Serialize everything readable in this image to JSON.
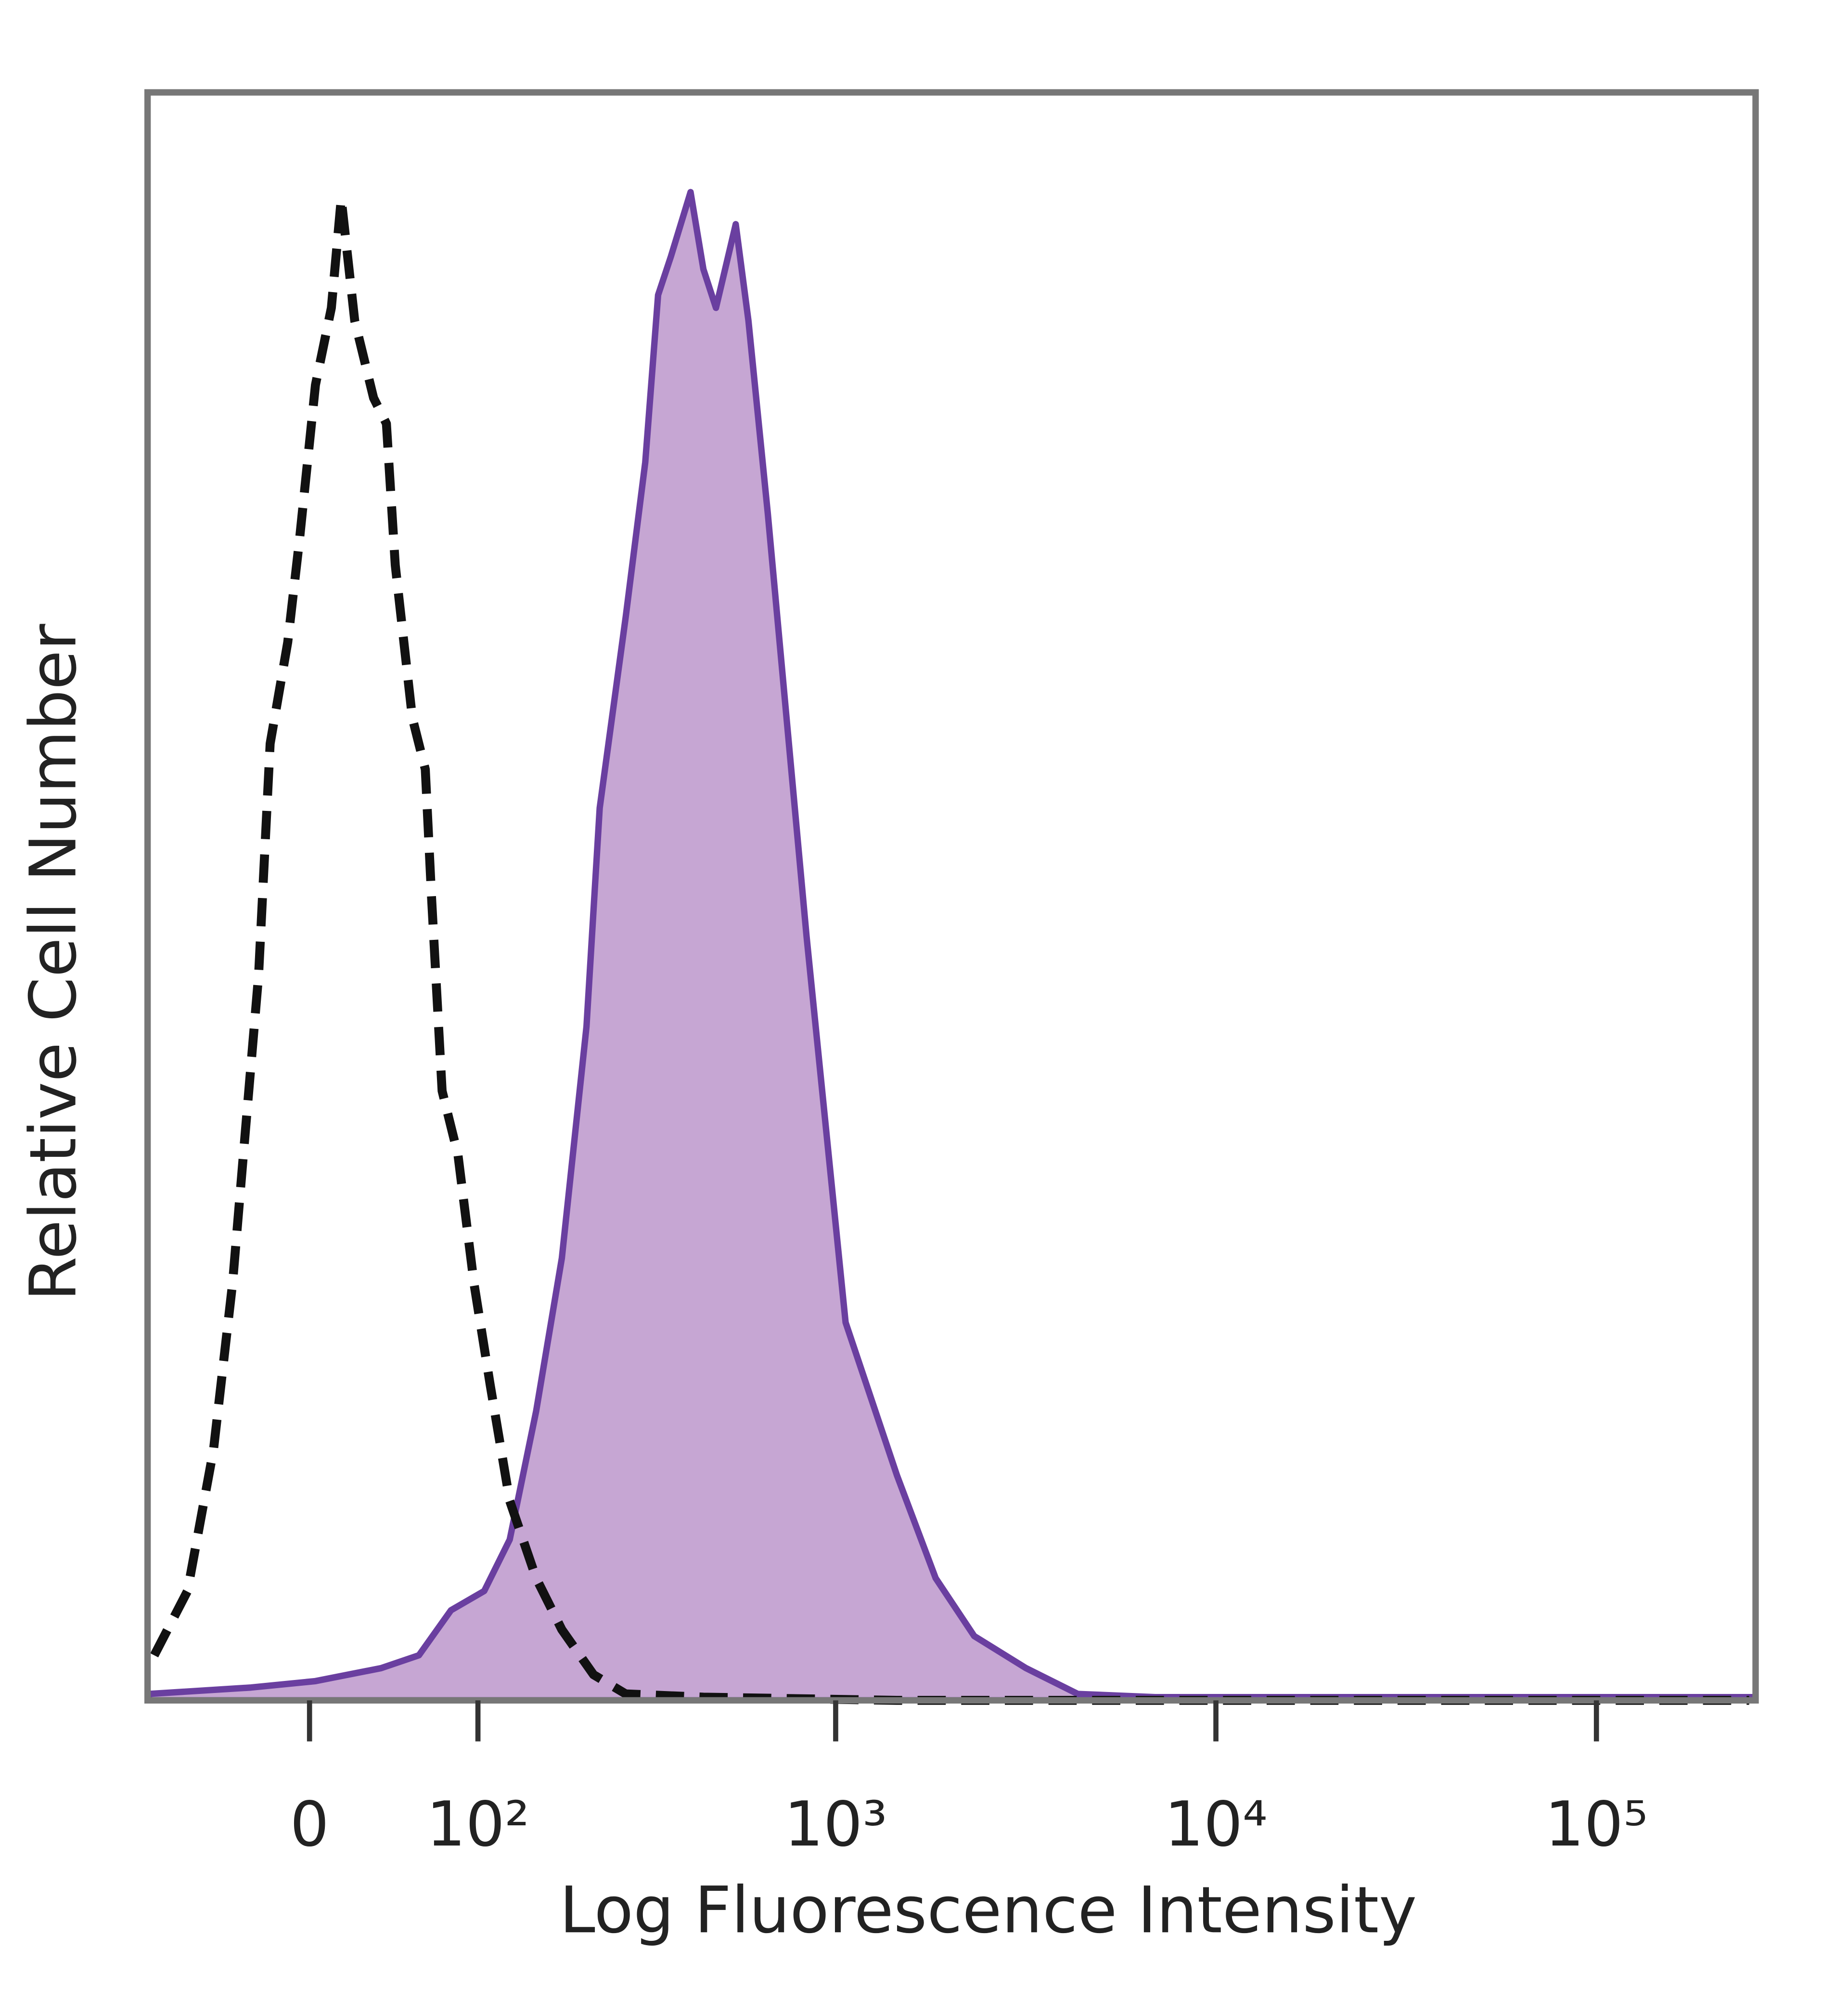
{
  "chart_data": {
    "type": "histogram-overlay",
    "x_label": "Log Fluorescence Intensity",
    "y_label": "Relative Cell Number",
    "xscale": "biexponential",
    "xlim": [
      -95,
      262000
    ],
    "ylim": [
      0,
      100
    ],
    "xticks": [
      0,
      {
        "value": 100,
        "label": "10²"
      },
      {
        "value": 1000,
        "label": "10³"
      },
      {
        "value": 10000,
        "label": "10⁴"
      },
      {
        "value": 100000,
        "label": "10⁵"
      }
    ],
    "series": [
      {
        "color": "#6a3fa0",
        "fill": "#c6a6d3",
        "dashed": false,
        "x": [
          -94,
          -30,
          3,
          37,
          59,
          80,
          105,
          127,
          153,
          182,
          214,
          233,
          275,
          311,
          337,
          365,
          412,
          446,
          482,
          544,
          588,
          662,
          838,
          1062,
          1450,
          1834,
          2316,
          3170,
          4333,
          6922,
          261000
        ],
        "values": [
          0.4,
          0.8,
          1.2,
          2,
          2.8,
          5.6,
          6.8,
          10,
          18,
          27.5,
          41.9,
          55.5,
          67.4,
          77,
          87.4,
          89.8,
          93.8,
          89,
          86.6,
          91.8,
          85.8,
          73.8,
          47.5,
          23.5,
          14,
          7.6,
          4,
          2,
          0.4,
          0.2,
          0.2
        ]
      },
      {
        "color": "#111111",
        "fill": null,
        "dashed": true,
        "x": [
          -90,
          -67,
          -51,
          -40,
          -33,
          -26,
          -20,
          -11,
          -5,
          3,
          11,
          16,
          23,
          33,
          40,
          45,
          55,
          63,
          67,
          74,
          85,
          97,
          110,
          127,
          153,
          182,
          224,
          275,
          446,
          1450,
          252000
        ],
        "values": [
          2.8,
          6.8,
          15.6,
          26,
          35.5,
          45.1,
          59.5,
          65.8,
          72.2,
          81.8,
          86.6,
          93.4,
          85.8,
          81,
          79.4,
          70.6,
          61.1,
          57.9,
          49.9,
          37.9,
          33.9,
          25.9,
          19.6,
          12.4,
          7.6,
          4.4,
          1.6,
          0.4,
          0.2,
          0,
          0
        ]
      }
    ]
  }
}
